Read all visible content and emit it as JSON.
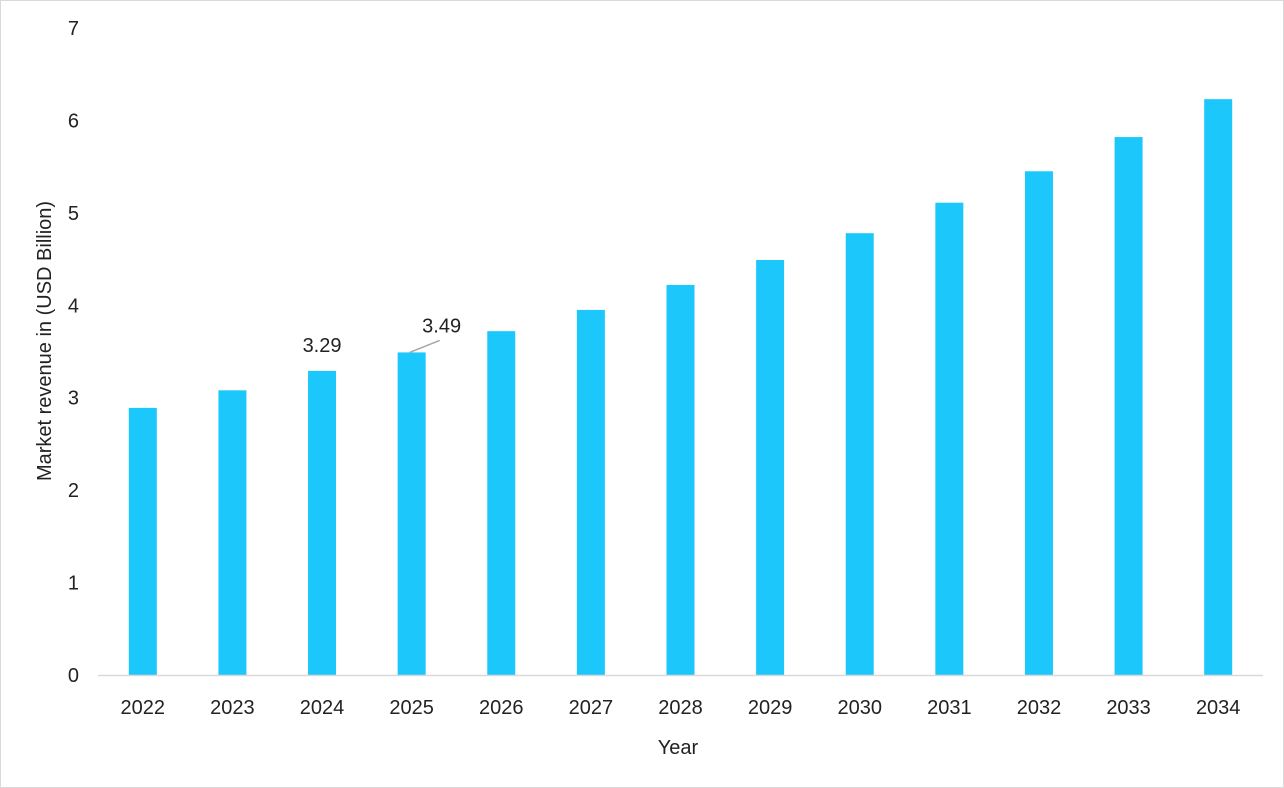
{
  "chart_data": {
    "type": "bar",
    "title": "",
    "xlabel": "Year",
    "ylabel": "Market revenue in (USD Billion)",
    "categories": [
      "2022",
      "2023",
      "2024",
      "2025",
      "2026",
      "2027",
      "2028",
      "2029",
      "2030",
      "2031",
      "2032",
      "2033",
      "2034"
    ],
    "values": [
      2.89,
      3.08,
      3.29,
      3.49,
      3.72,
      3.95,
      4.22,
      4.49,
      4.78,
      5.11,
      5.45,
      5.82,
      6.23
    ],
    "data_labels": [
      {
        "category": "2024",
        "text": "3.29"
      },
      {
        "category": "2025",
        "text": "3.49"
      }
    ],
    "ylim": [
      0,
      7
    ],
    "yticks": [
      "0",
      "1",
      "2",
      "3",
      "4",
      "5",
      "6",
      "7"
    ],
    "grid": false,
    "legend": "none",
    "colors": {
      "bar": "#1CC8FB",
      "axis": "#d9d9d9",
      "leader": "#a6a6a6"
    }
  }
}
